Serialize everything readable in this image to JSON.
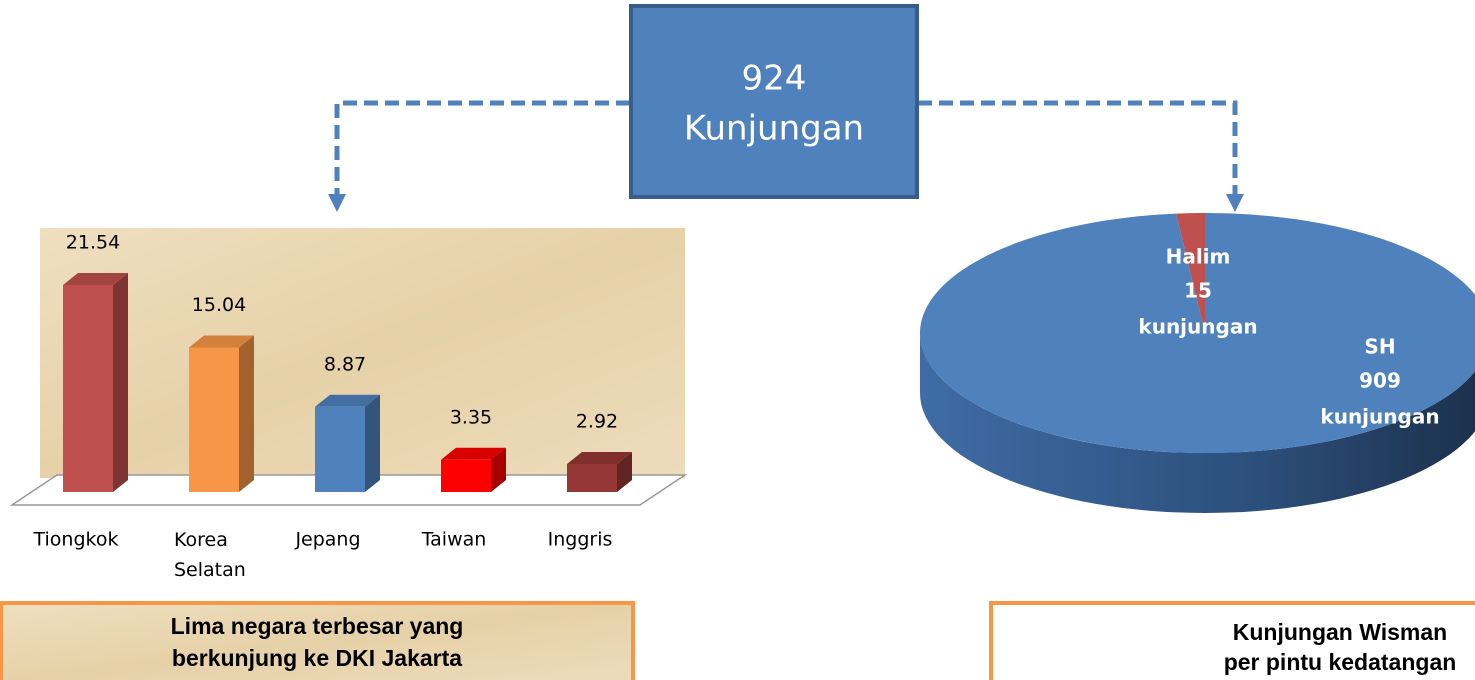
{
  "header": {
    "value": 924,
    "label": "Kunjungan"
  },
  "chart_data": [
    {
      "type": "bar",
      "categories": [
        "Tiongkok",
        "Korea Selatan",
        "Jepang",
        "Taiwan",
        "Inggris"
      ],
      "values": [
        21.54,
        15.04,
        8.87,
        3.35,
        2.92
      ],
      "colors": [
        "#c0504d",
        "#f79646",
        "#4f81bd",
        "#ff0000",
        "#953735"
      ],
      "caption": [
        "Lima negara terbesar yang",
        "berkunjung ke DKI Jakarta"
      ]
    },
    {
      "type": "pie",
      "categories": [
        "Halim",
        "SH"
      ],
      "values": [
        15,
        909
      ],
      "colors": [
        "#c0504d",
        "#4f81bd"
      ],
      "unit": "kunjungan",
      "caption": [
        "Kunjungan Wisman",
        "per pintu kedatangan"
      ]
    }
  ]
}
